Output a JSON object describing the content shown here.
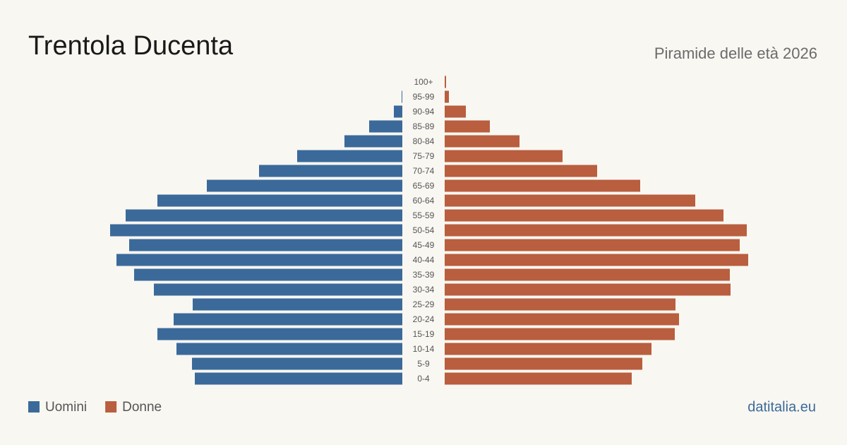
{
  "chart_data": {
    "type": "pyramid",
    "title": "Trentola Ducenta",
    "subtitle": "Piramide delle età 2026",
    "source": "datitalia.eu",
    "categories": [
      "0-4",
      "5-9",
      "10-14",
      "15-19",
      "20-24",
      "25-29",
      "30-34",
      "35-39",
      "40-44",
      "45-49",
      "50-54",
      "55-59",
      "60-64",
      "65-69",
      "70-74",
      "75-79",
      "80-84",
      "85-89",
      "90-94",
      "95-99",
      "100+"
    ],
    "series": [
      {
        "name": "Uomini",
        "color": "#3b6a9a",
        "side": "left",
        "values": [
          294,
          298,
          320,
          347,
          324,
          297,
          352,
          380,
          405,
          387,
          414,
          392,
          347,
          277,
          203,
          149,
          82,
          47,
          12,
          1,
          0
        ]
      },
      {
        "name": "Donne",
        "color": "#b95e3e",
        "side": "right",
        "values": [
          265,
          280,
          293,
          326,
          332,
          327,
          405,
          404,
          430,
          418,
          428,
          395,
          355,
          277,
          216,
          167,
          106,
          64,
          30,
          6,
          2
        ]
      }
    ]
  }
}
